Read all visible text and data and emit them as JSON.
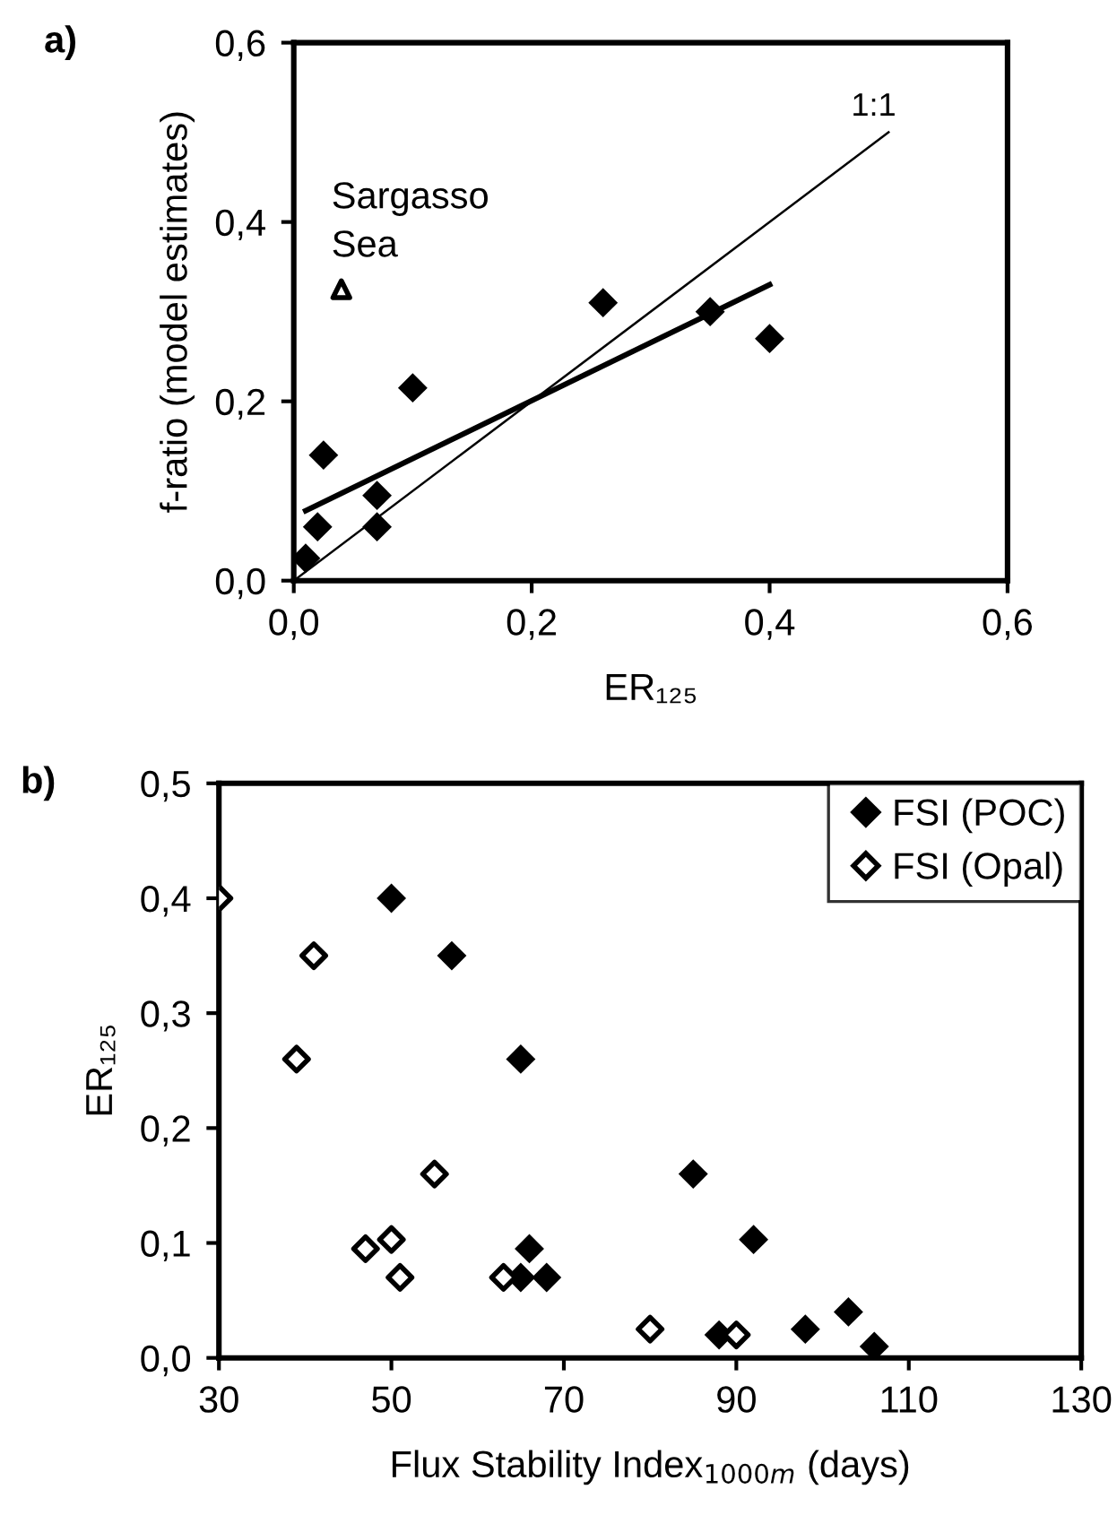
{
  "chart_data": [
    {
      "type": "scatter",
      "title": "a)",
      "xlabel": "ER₁₂₅",
      "ylabel": "f-ratio (model estimates)",
      "xlim": [
        0,
        0.6
      ],
      "ylim": [
        0,
        0.6
      ],
      "xticks": [
        {
          "value": 0,
          "label": "0,0"
        },
        {
          "value": 0.2,
          "label": "0,2"
        },
        {
          "value": 0.4,
          "label": "0,4"
        },
        {
          "value": 0.6,
          "label": "0,6"
        }
      ],
      "yticks": [
        {
          "value": 0,
          "label": "0,0"
        },
        {
          "value": 0.2,
          "label": "0,2"
        },
        {
          "value": 0.4,
          "label": "0,4"
        },
        {
          "value": 0.6,
          "label": "0,6"
        }
      ],
      "grid": false,
      "legend": false,
      "series": [
        {
          "type": "line",
          "color": "#000000",
          "marker": "none",
          "x": [
            0,
            0.5
          ],
          "values": [
            0,
            0.5
          ]
        },
        {
          "type": "line",
          "color": "#000000",
          "marker": "none",
          "x": [
            0.01,
            0.4
          ],
          "values": [
            0.078,
            0.33
          ]
        },
        {
          "type": "scatter",
          "color": "#000000",
          "marker": "diamond",
          "x": [
            0.01,
            0.02,
            0.025,
            0.07,
            0.07,
            0.1,
            0.26,
            0.35,
            0.4
          ],
          "values": [
            0.025,
            0.06,
            0.14,
            0.095,
            0.06,
            0.215,
            0.31,
            0.3,
            0.27
          ]
        },
        {
          "type": "scatter",
          "color": "#000000",
          "marker": "triangle",
          "x": [
            0.04
          ],
          "values": [
            0.325
          ]
        }
      ],
      "annotations": [
        {
          "text": "Sargasso\nSea",
          "x": 0.04,
          "y": 0.325
        },
        {
          "text": "1:1",
          "x": 0.5,
          "y": 0.5
        }
      ]
    },
    {
      "type": "scatter",
      "title": "b)",
      "xlabel": "Flux Stability Index$_{1000m}$ (days)",
      "ylabel": "ER₁₂₅",
      "xlim": [
        30,
        130
      ],
      "ylim": [
        0,
        0.5
      ],
      "xticks": [
        30,
        50,
        70,
        90,
        110,
        130
      ],
      "yticks": [
        {
          "value": 0,
          "label": "0,0"
        },
        {
          "value": 0.1,
          "label": "0,1"
        },
        {
          "value": 0.2,
          "label": "0,2"
        },
        {
          "value": 0.3,
          "label": "0,3"
        },
        {
          "value": 0.4,
          "label": "0,4"
        },
        {
          "value": 0.5,
          "label": "0,5"
        }
      ],
      "grid": false,
      "legend": "top right",
      "series": [
        {
          "name": "FSI (POC)",
          "color": "#000000",
          "marker": "diamond",
          "x": [
            50,
            57,
            65,
            66,
            65,
            68,
            85,
            92,
            88,
            98,
            103,
            106
          ],
          "values": [
            0.4,
            0.35,
            0.26,
            0.095,
            0.07,
            0.07,
            0.16,
            0.103,
            0.02,
            0.025,
            0.04,
            0.01
          ]
        },
        {
          "name": "FSI (Opal)",
          "color": "#000000",
          "marker": "diamond",
          "x": [
            30,
            41,
            39,
            55,
            47,
            50,
            51,
            63,
            80,
            90
          ],
          "values": [
            0.4,
            0.35,
            0.26,
            0.16,
            0.095,
            0.103,
            0.07,
            0.07,
            0.025,
            0.02
          ]
        }
      ]
    }
  ]
}
